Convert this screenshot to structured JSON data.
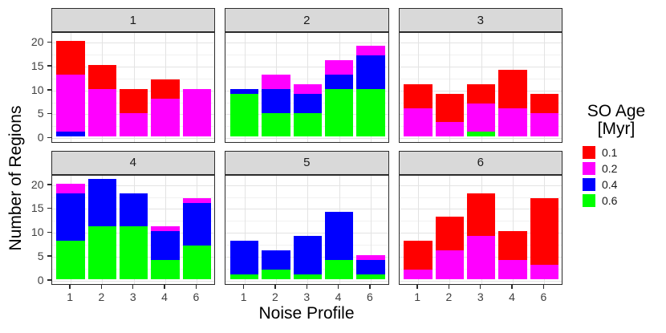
{
  "chart_data": {
    "type": "bar",
    "stacked": true,
    "faceted": true,
    "title": "",
    "xlabel": "Noise Profile",
    "ylabel": "Number of Regions",
    "x_categories": [
      "1",
      "2",
      "3",
      "4",
      "6"
    ],
    "y_ticks": [
      0,
      5,
      10,
      15,
      20
    ],
    "y_minor_ticks": [
      2.5,
      7.5,
      12.5,
      17.5
    ],
    "ylim": [
      0,
      21
    ],
    "grid": "major-and-minor",
    "legend": {
      "position": "right",
      "title_line1": "SO Age",
      "title_line2": "[Myr]",
      "entries": [
        {
          "label": "0.1",
          "color": "#FF0000"
        },
        {
          "label": "0.2",
          "color": "#FF00FF"
        },
        {
          "label": "0.4",
          "color": "#0000FF"
        },
        {
          "label": "0.6",
          "color": "#00FF00"
        }
      ]
    },
    "series_bottom_to_top": [
      "0.6",
      "0.4",
      "0.2",
      "0.1"
    ],
    "facets": [
      {
        "label": "1",
        "values": {
          "0.6": [
            0,
            0,
            0,
            0,
            0
          ],
          "0.4": [
            1,
            0,
            0,
            0,
            0
          ],
          "0.2": [
            12,
            10,
            5,
            8,
            10
          ],
          "0.1": [
            7,
            5,
            5,
            4,
            0
          ]
        },
        "totals": [
          20,
          15,
          10,
          12,
          10
        ]
      },
      {
        "label": "2",
        "values": {
          "0.6": [
            9,
            5,
            5,
            10,
            10
          ],
          "0.4": [
            1,
            5,
            4,
            3,
            7
          ],
          "0.2": [
            0,
            3,
            2,
            3,
            2
          ],
          "0.1": [
            0,
            0,
            0,
            0,
            0
          ]
        },
        "totals": [
          10,
          13,
          11,
          16,
          19
        ]
      },
      {
        "label": "3",
        "values": {
          "0.6": [
            0,
            0,
            1,
            0,
            0
          ],
          "0.4": [
            0,
            0,
            0,
            0,
            0
          ],
          "0.2": [
            6,
            3,
            6,
            6,
            5
          ],
          "0.1": [
            5,
            6,
            4,
            8,
            4
          ]
        },
        "totals": [
          11,
          9,
          11,
          14,
          9
        ]
      },
      {
        "label": "4",
        "values": {
          "0.6": [
            8,
            11,
            11,
            4,
            7
          ],
          "0.4": [
            10,
            10,
            7,
            6,
            9
          ],
          "0.2": [
            2,
            0,
            0,
            1,
            1
          ],
          "0.1": [
            0,
            0,
            0,
            0,
            0
          ]
        },
        "totals": [
          20,
          21,
          18,
          11,
          17
        ]
      },
      {
        "label": "5",
        "values": {
          "0.6": [
            1,
            2,
            1,
            4,
            1
          ],
          "0.4": [
            7,
            4,
            8,
            10,
            3
          ],
          "0.2": [
            0,
            0,
            0,
            0,
            1
          ],
          "0.1": [
            0,
            0,
            0,
            0,
            0
          ]
        },
        "totals": [
          8,
          6,
          9,
          14,
          5
        ]
      },
      {
        "label": "6",
        "values": {
          "0.6": [
            0,
            0,
            0,
            0,
            0
          ],
          "0.4": [
            0,
            0,
            0,
            0,
            0
          ],
          "0.2": [
            2,
            6,
            9,
            4,
            3
          ],
          "0.1": [
            6,
            7,
            9,
            6,
            14
          ]
        },
        "totals": [
          8,
          13,
          18,
          10,
          17
        ]
      }
    ],
    "theme": {
      "strip_fill": "#D9D9D9",
      "panel_border": "#2B2B2B",
      "grid_major": "#E3E3E3",
      "grid_minor": "#F1F1F1",
      "tick_text": "#404040"
    }
  }
}
